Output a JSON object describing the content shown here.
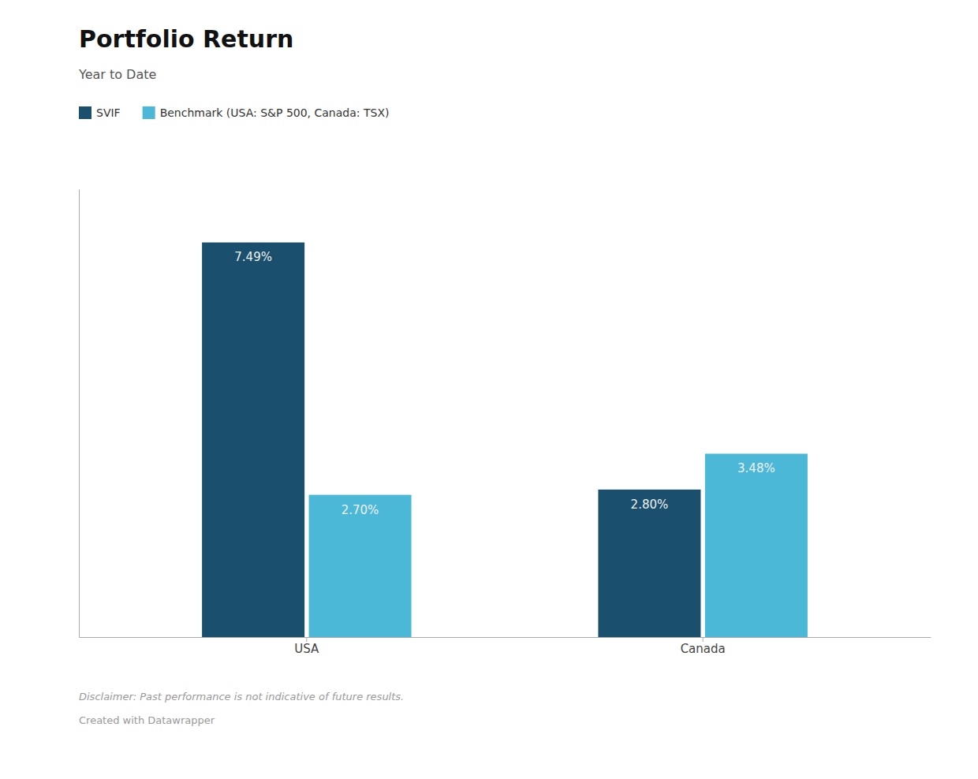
{
  "chart_data": {
    "type": "bar",
    "title": "Portfolio Return",
    "subtitle": "Year to Date",
    "categories": [
      "USA",
      "Canada"
    ],
    "series": [
      {
        "name": "SVIF",
        "color": "#1a4f6e",
        "values": [
          7.49,
          2.8
        ],
        "value_labels": [
          "7.49%",
          "2.80%"
        ]
      },
      {
        "name": "Benchmark (USA: S&P 500, Canada: TSX)",
        "color": "#4cb8d8",
        "values": [
          2.7,
          3.48
        ],
        "value_labels": [
          "2.70%",
          "3.48%"
        ]
      }
    ],
    "ylim": [
      0,
      8.5
    ],
    "data_labels": true,
    "tick_labels": "x",
    "grid": false,
    "legend": "upper left",
    "annotations": [
      "Disclaimer: Past performance is not indicative of future results.",
      "Created with Datawrapper"
    ]
  }
}
